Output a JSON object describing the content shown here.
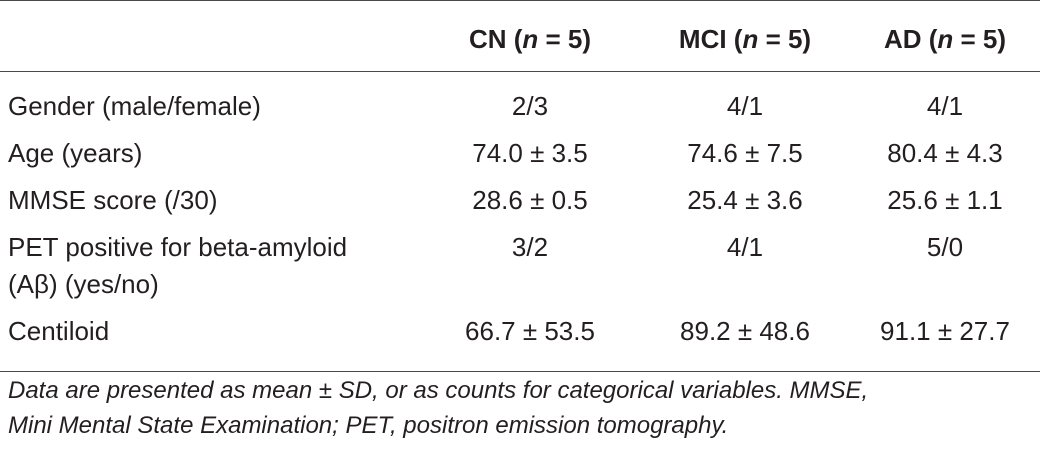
{
  "table": {
    "headers": [
      {
        "label": "",
        "pre": "",
        "n": "",
        "post": ""
      },
      {
        "pre": "CN (",
        "n": "n",
        "post": " = 5)"
      },
      {
        "pre": "MCI (",
        "n": "n",
        "post": " = 5)"
      },
      {
        "pre": "AD (",
        "n": "n",
        "post": " = 5)"
      }
    ],
    "rows": [
      {
        "label_lines": [
          "Gender (male/female)"
        ],
        "cn": "2/3",
        "mci": "4/1",
        "ad": "4/1"
      },
      {
        "label_lines": [
          "Age (years)"
        ],
        "cn": "74.0 ± 3.5",
        "mci": "74.6 ± 7.5",
        "ad": "80.4 ± 4.3"
      },
      {
        "label_lines": [
          "MMSE score (/30)"
        ],
        "cn": "28.6 ± 0.5",
        "mci": "25.4 ± 3.6",
        "ad": "25.6 ± 1.1"
      },
      {
        "label_lines": [
          "PET positive for beta-amyloid",
          "(Aβ) (yes/no)"
        ],
        "cn": "3/2",
        "mci": "4/1",
        "ad": "5/0"
      },
      {
        "label_lines": [
          "Centiloid"
        ],
        "cn": "66.7 ± 53.5",
        "mci": "89.2 ± 48.6",
        "ad": "91.1 ± 27.7"
      }
    ]
  },
  "footnote": {
    "line1": "Data are presented as mean ± SD, or as counts for categorical variables. MMSE,",
    "line2": "Mini Mental State Examination; PET, positron emission tomography."
  }
}
